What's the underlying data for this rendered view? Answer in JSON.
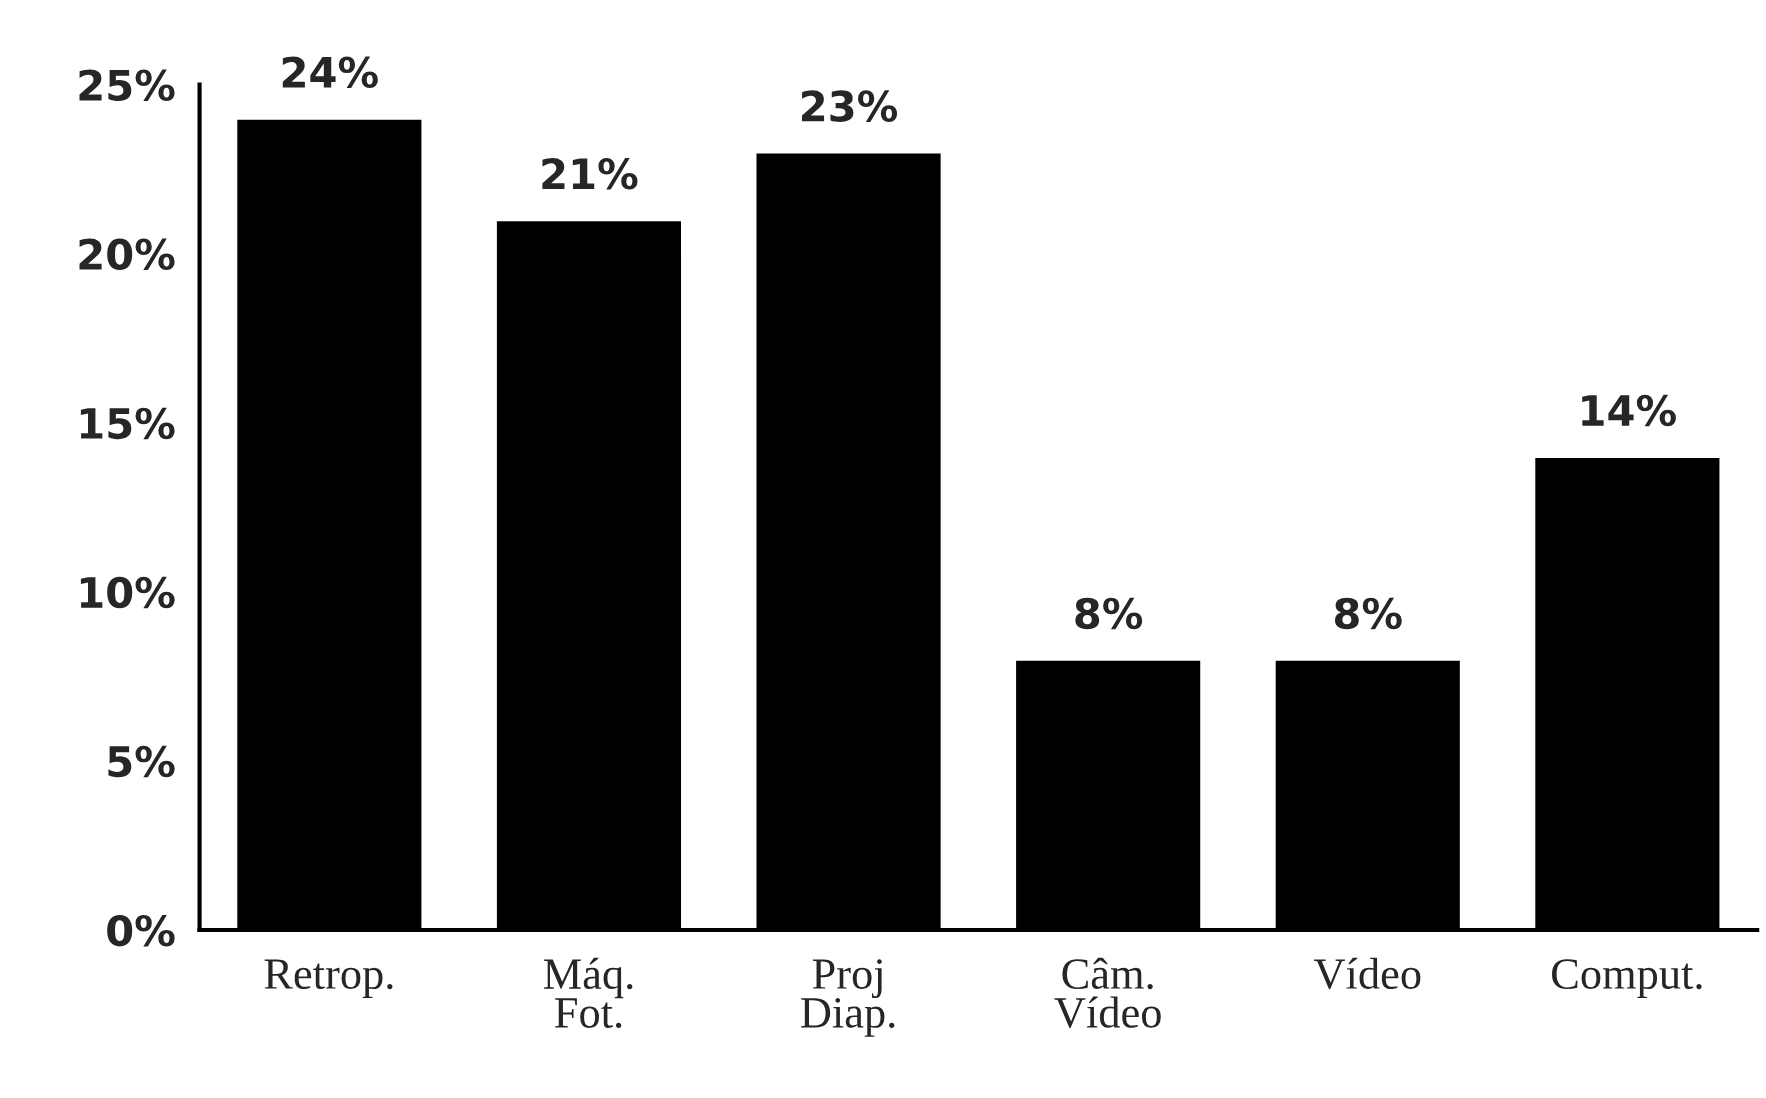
{
  "chart_data": {
    "type": "bar",
    "categories": [
      "Retrop.",
      "Máq.\nFot.",
      "Proj\nDiap.",
      "Câm.\nVídeo",
      "Vídeo",
      "Comput."
    ],
    "values": [
      24,
      21,
      23,
      8,
      8,
      14
    ],
    "value_labels": [
      "24%",
      "21%",
      "23%",
      "8%",
      "8%",
      "14%"
    ],
    "color": "#000000",
    "ylim": [
      0,
      25
    ],
    "yticks": [
      {
        "value": 0,
        "label": "0%"
      },
      {
        "value": 5,
        "label": "5%"
      },
      {
        "value": 10,
        "label": "10%"
      },
      {
        "value": 15,
        "label": "15%"
      },
      {
        "value": 20,
        "label": "20%"
      },
      {
        "value": 25,
        "label": "25%"
      }
    ],
    "grid": false,
    "legend": false
  }
}
